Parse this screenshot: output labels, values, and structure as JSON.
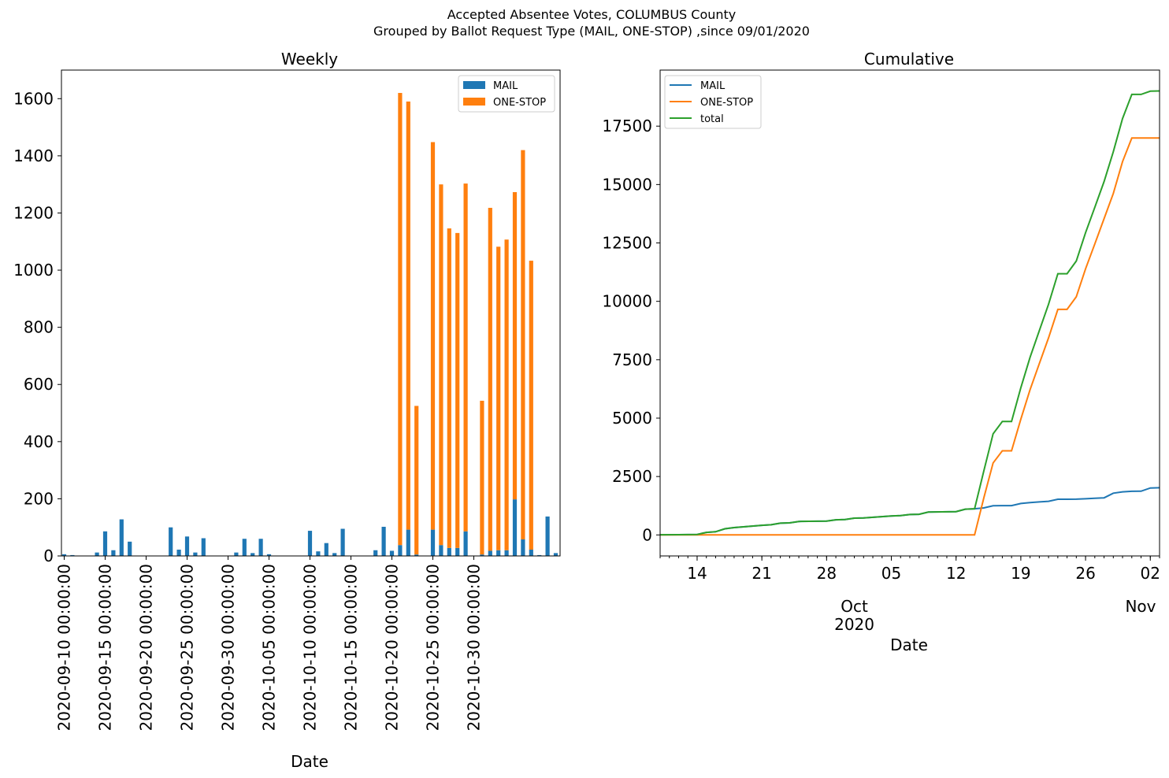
{
  "figure": {
    "title_line1": "Accepted Absentee Votes, COLUMBUS County",
    "title_line2": "Grouped by Ballot Request Type (MAIL, ONE-STOP) ,since 09/01/2020"
  },
  "colors": {
    "mail": "#1f77b4",
    "onestop": "#ff7f0e",
    "total": "#2ca02c"
  },
  "chart_data": [
    {
      "type": "bar",
      "stacked": true,
      "title": "Weekly",
      "xlabel": "Date",
      "ylabel": "",
      "ylim": [
        0,
        1700
      ],
      "yticks": [
        0,
        200,
        400,
        600,
        800,
        1000,
        1200,
        1400,
        1600
      ],
      "grid": false,
      "legend": "top-right",
      "start_date": "2020-09-10",
      "tick_labels": [
        "2020-09-10 00:00:00",
        "2020-09-15 00:00:00",
        "2020-09-20 00:00:00",
        "2020-09-25 00:00:00",
        "2020-09-30 00:00:00",
        "2020-10-05 00:00:00",
        "2020-10-10 00:00:00",
        "2020-10-15 00:00:00",
        "2020-10-20 00:00:00",
        "2020-10-25 00:00:00",
        "2020-10-30 00:00:00"
      ],
      "series": [
        {
          "name": "MAIL",
          "values": [
            6,
            3,
            0,
            0,
            12,
            86,
            20,
            128,
            50,
            0,
            0,
            0,
            0,
            100,
            22,
            68,
            12,
            62,
            0,
            0,
            0,
            12,
            60,
            10,
            60,
            6,
            0,
            0,
            0,
            0,
            88,
            16,
            45,
            10,
            95,
            0,
            0,
            0,
            20,
            102,
            18,
            38,
            92,
            5,
            0,
            92,
            38,
            28,
            28,
            86,
            0,
            5,
            18,
            20,
            20,
            198,
            58,
            22,
            3,
            138,
            10
          ]
        },
        {
          "name": "ONE-STOP",
          "values": [
            0,
            0,
            0,
            0,
            0,
            0,
            0,
            0,
            0,
            0,
            0,
            0,
            0,
            0,
            0,
            0,
            0,
            0,
            0,
            0,
            0,
            0,
            0,
            0,
            0,
            0,
            0,
            0,
            0,
            0,
            0,
            0,
            0,
            0,
            0,
            0,
            0,
            0,
            0,
            0,
            0,
            1582,
            1498,
            520,
            0,
            1356,
            1262,
            1118,
            1102,
            1217,
            0,
            538,
            1200,
            1062,
            1087,
            1075,
            1362,
            1011,
            0,
            0,
            0
          ]
        }
      ]
    },
    {
      "type": "line",
      "title": "Cumulative",
      "xlabel": "Date",
      "ylabel": "",
      "ylim": [
        -900,
        19900
      ],
      "yticks": [
        0,
        2500,
        5000,
        7500,
        10000,
        12500,
        15000,
        17500
      ],
      "xlim": [
        "2020-09-10",
        "2020-11-03"
      ],
      "xtick_labels": [
        "14",
        "21",
        "28",
        "05",
        "12",
        "19",
        "26",
        "02"
      ],
      "xtick_dates": [
        "2020-09-14",
        "2020-09-21",
        "2020-09-28",
        "2020-10-05",
        "2020-10-12",
        "2020-10-19",
        "2020-10-26",
        "2020-11-02"
      ],
      "month_labels": [
        {
          "date": "2020-10-01",
          "line1": "Oct",
          "line2": "2020"
        },
        {
          "date": "2020-11-01",
          "line1": "Nov",
          "line2": ""
        }
      ],
      "grid": false,
      "legend": "top-left",
      "x": [
        "2020-09-10",
        "2020-09-12",
        "2020-09-14",
        "2020-09-15",
        "2020-09-16",
        "2020-09-17",
        "2020-09-18",
        "2020-09-21",
        "2020-09-22",
        "2020-09-23",
        "2020-09-24",
        "2020-09-25",
        "2020-09-28",
        "2020-09-29",
        "2020-09-30",
        "2020-10-01",
        "2020-10-02",
        "2020-10-05",
        "2020-10-06",
        "2020-10-07",
        "2020-10-08",
        "2020-10-09",
        "2020-10-12",
        "2020-10-13",
        "2020-10-14",
        "2020-10-15",
        "2020-10-16",
        "2020-10-17",
        "2020-10-18",
        "2020-10-19",
        "2020-10-20",
        "2020-10-21",
        "2020-10-22",
        "2020-10-23",
        "2020-10-24",
        "2020-10-25",
        "2020-10-26",
        "2020-10-27",
        "2020-10-28",
        "2020-10-29",
        "2020-10-30",
        "2020-10-31",
        "2020-11-01",
        "2020-11-02",
        "2020-11-03"
      ],
      "series": [
        {
          "name": "MAIL",
          "values": [
            6,
            9,
            21,
            107,
            135,
            263,
            313,
            413,
            435,
            503,
            515,
            577,
            589,
            649,
            659,
            719,
            725,
            813,
            829,
            874,
            884,
            979,
            999,
            1101,
            1119,
            1157,
            1249,
            1254,
            1254,
            1346,
            1384,
            1412,
            1440,
            1526,
            1526,
            1531,
            1549,
            1569,
            1589,
            1787,
            1845,
            1867,
            1870,
            2008,
            2018
          ]
        },
        {
          "name": "ONE-STOP",
          "values": [
            0,
            0,
            0,
            0,
            0,
            0,
            0,
            0,
            0,
            0,
            0,
            0,
            0,
            0,
            0,
            0,
            0,
            0,
            0,
            0,
            0,
            0,
            0,
            0,
            0,
            1582,
            3080,
            3600,
            3600,
            4956,
            6218,
            7336,
            8438,
            9655,
            9655,
            10193,
            11393,
            12455,
            13542,
            14617,
            15979,
            16990,
            16990,
            16990,
            16990
          ]
        },
        {
          "name": "total",
          "values": [
            6,
            9,
            21,
            107,
            135,
            263,
            313,
            413,
            435,
            503,
            515,
            577,
            589,
            649,
            659,
            719,
            725,
            813,
            829,
            874,
            884,
            979,
            999,
            1101,
            1119,
            2739,
            4329,
            4854,
            4854,
            6302,
            7602,
            8748,
            9878,
            11181,
            11181,
            11724,
            12942,
            14024,
            15131,
            16404,
            17824,
            18857,
            18860,
            18998,
            19008
          ]
        }
      ]
    }
  ]
}
